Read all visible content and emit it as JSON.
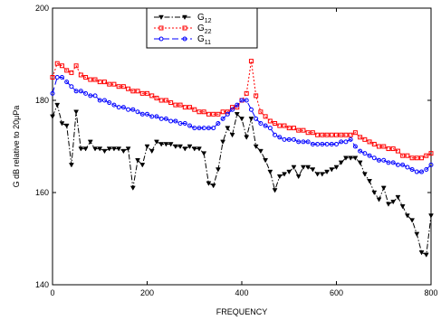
{
  "chart_data": {
    "type": "line",
    "xlabel": "FREQUENCY",
    "ylabel": "G   dB relative to 20μPa",
    "xlim": [
      0,
      800
    ],
    "ylim": [
      140,
      200
    ],
    "xticks": [
      "0",
      "200",
      "400",
      "600",
      "800"
    ],
    "yticks": [
      "140",
      "160",
      "180",
      "200"
    ],
    "legend_position": "top-center",
    "grid": false,
    "series": [
      {
        "name": "G12",
        "name_base": "G",
        "name_sub": "12",
        "color": "#000000",
        "dash": "6,2,1.5,2",
        "marker": "triangle-down",
        "x": [
          0,
          10,
          20,
          30,
          40,
          50,
          60,
          70,
          80,
          90,
          100,
          110,
          120,
          130,
          140,
          150,
          160,
          170,
          180,
          190,
          200,
          210,
          220,
          230,
          240,
          250,
          260,
          270,
          280,
          290,
          300,
          310,
          320,
          330,
          340,
          350,
          360,
          370,
          380,
          390,
          400,
          410,
          420,
          430,
          440,
          450,
          460,
          470,
          480,
          490,
          500,
          510,
          520,
          530,
          540,
          550,
          560,
          570,
          580,
          590,
          600,
          610,
          620,
          630,
          640,
          650,
          660,
          670,
          680,
          690,
          700,
          710,
          720,
          730,
          740,
          750,
          760,
          770,
          780,
          790,
          800
        ],
        "y": [
          176.5,
          179,
          175,
          174.5,
          166,
          177.5,
          169.5,
          169.5,
          171,
          169.5,
          169.5,
          169,
          169.5,
          169.5,
          169.5,
          169,
          169.5,
          161,
          167,
          166,
          170,
          169,
          171,
          170.5,
          170.5,
          170.5,
          170,
          170,
          169.5,
          170,
          169.5,
          169.5,
          168.5,
          162,
          161.5,
          165,
          171,
          174,
          172.5,
          177,
          176,
          172,
          176,
          170,
          169,
          167,
          164.5,
          160.5,
          163.5,
          164,
          164.5,
          165.5,
          163.5,
          165.5,
          165.5,
          165,
          164,
          164,
          164.5,
          165,
          165.5,
          166.5,
          167.5,
          167.5,
          167.5,
          166.5,
          164,
          162.5,
          160,
          158.5,
          161,
          157.5,
          158,
          159,
          157,
          155,
          154,
          151,
          147,
          146.5,
          155
        ]
      },
      {
        "name": "G22",
        "name_base": "G",
        "name_sub": "22",
        "color": "#ff0000",
        "dash": "2,2",
        "marker": "square",
        "x": [
          0,
          10,
          20,
          30,
          40,
          50,
          60,
          70,
          80,
          90,
          100,
          110,
          120,
          130,
          140,
          150,
          160,
          170,
          180,
          190,
          200,
          210,
          220,
          230,
          240,
          250,
          260,
          270,
          280,
          290,
          300,
          310,
          320,
          330,
          340,
          350,
          360,
          370,
          380,
          390,
          400,
          410,
          420,
          430,
          440,
          450,
          460,
          470,
          480,
          490,
          500,
          510,
          520,
          530,
          540,
          550,
          560,
          570,
          580,
          590,
          600,
          610,
          620,
          630,
          640,
          650,
          660,
          670,
          680,
          690,
          700,
          710,
          720,
          730,
          740,
          750,
          760,
          770,
          780,
          790,
          800
        ],
        "y": [
          185,
          188,
          187.5,
          186.5,
          186,
          187.5,
          185.5,
          185,
          184.5,
          184.5,
          184,
          184,
          183.5,
          183.5,
          183,
          183,
          182.5,
          182,
          182,
          181.5,
          181.5,
          181,
          180.5,
          180,
          180,
          179.5,
          179,
          179,
          178.5,
          178.5,
          178,
          177.5,
          177.5,
          177,
          177,
          177,
          177.5,
          177.5,
          178.5,
          178.5,
          180,
          181.5,
          188.5,
          181,
          177.5,
          176.5,
          175.5,
          175,
          174.5,
          174.5,
          174,
          174,
          173.5,
          173.5,
          173,
          173,
          172.5,
          172.5,
          172.5,
          172.5,
          172.5,
          172.5,
          172.5,
          172.5,
          173,
          172,
          171.5,
          171,
          170.5,
          170,
          170,
          169.5,
          169.5,
          169,
          168,
          168,
          167.5,
          167.5,
          167.5,
          168,
          168.5
        ]
      },
      {
        "name": "G11",
        "name_base": "G",
        "name_sub": "11",
        "color": "#0000ff",
        "dash": "7,3",
        "marker": "circle",
        "x": [
          0,
          10,
          20,
          30,
          40,
          50,
          60,
          70,
          80,
          90,
          100,
          110,
          120,
          130,
          140,
          150,
          160,
          170,
          180,
          190,
          200,
          210,
          220,
          230,
          240,
          250,
          260,
          270,
          280,
          290,
          300,
          310,
          320,
          330,
          340,
          350,
          360,
          370,
          380,
          390,
          400,
          410,
          420,
          430,
          440,
          450,
          460,
          470,
          480,
          490,
          500,
          510,
          520,
          530,
          540,
          550,
          560,
          570,
          580,
          590,
          600,
          610,
          620,
          630,
          640,
          650,
          660,
          670,
          680,
          690,
          700,
          710,
          720,
          730,
          740,
          750,
          760,
          770,
          780,
          790,
          800
        ],
        "y": [
          181.5,
          185,
          185,
          184,
          183,
          182,
          182,
          181.5,
          181,
          181,
          180,
          180,
          179.5,
          179,
          178.5,
          178.5,
          178,
          178,
          177.5,
          177,
          177,
          176.5,
          176.5,
          176,
          176,
          175.5,
          175.5,
          175,
          175,
          174.5,
          174,
          174,
          174,
          174,
          174,
          175,
          176,
          177,
          178,
          179,
          180,
          180,
          178,
          176,
          175,
          174.5,
          174,
          172.5,
          172,
          171.5,
          171.5,
          171.5,
          171,
          171,
          171,
          170.5,
          170.5,
          170.5,
          170.5,
          170.5,
          170.5,
          171,
          171,
          171.5,
          170,
          169,
          168.5,
          168,
          167.5,
          167,
          167,
          166.5,
          166.5,
          166,
          166,
          165.5,
          165,
          164.5,
          164.5,
          165,
          166
        ]
      }
    ]
  }
}
